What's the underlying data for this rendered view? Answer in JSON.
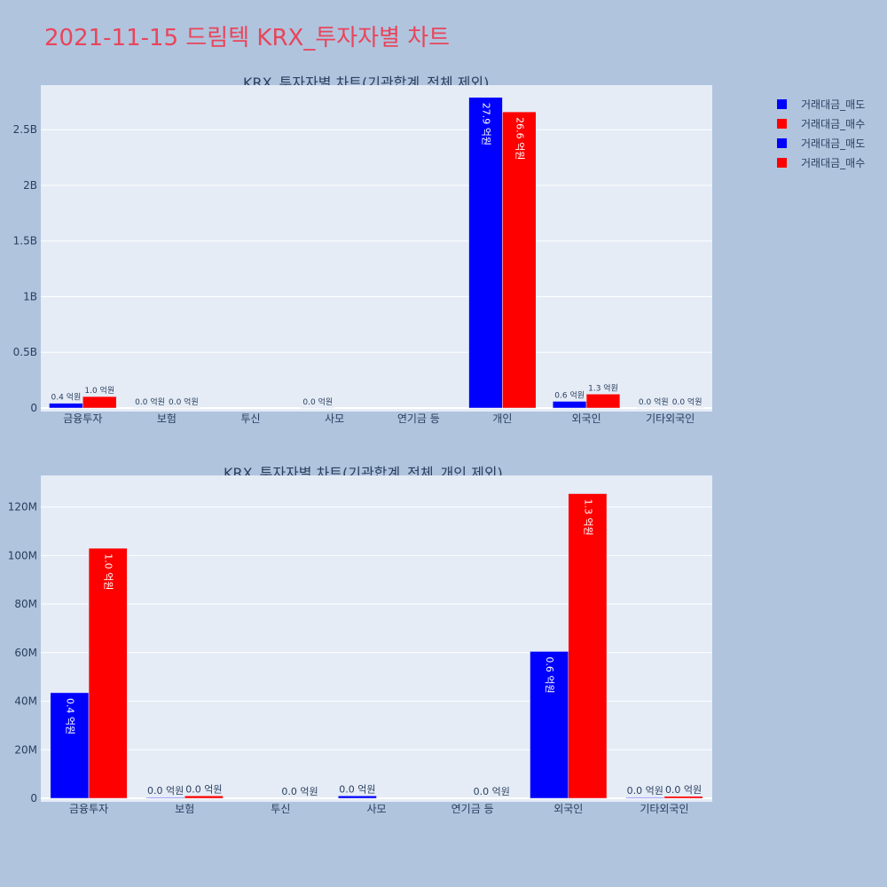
{
  "title": "2021-11-15 드림텍 KRX_투자자별 차트",
  "legend": [
    {
      "label": "거래대금_매도",
      "color": "#0000ff"
    },
    {
      "label": "거래대금_매수",
      "color": "#ff0000"
    },
    {
      "label": "거래대금_매도",
      "color": "#0000ff"
    },
    {
      "label": "거래대금_매수",
      "color": "#ff0000"
    }
  ],
  "chart_data": [
    {
      "type": "bar",
      "title": "KRX_투자자별 차트(기관합계_전체 제외)",
      "categories": [
        "금융투자",
        "보험",
        "투신",
        "사모",
        "연기금 등",
        "개인",
        "외국인",
        "기타외국인"
      ],
      "ylim": [
        0,
        2900000000
      ],
      "yticks": [
        0,
        500000000,
        1000000000,
        1500000000,
        2000000000,
        2500000000
      ],
      "ytick_labels": [
        "0",
        "0.5B",
        "1B",
        "1.5B",
        "2B",
        "2.5B"
      ],
      "text_position": [
        [
          "outside",
          "outside"
        ],
        [
          "outside",
          "outside"
        ],
        [
          "outside",
          "outside"
        ],
        [
          "outside",
          "outside"
        ],
        [
          "outside",
          "outside"
        ],
        [
          "inside",
          "inside"
        ],
        [
          "outside",
          "outside"
        ],
        [
          "outside",
          "outside"
        ]
      ],
      "series": [
        {
          "name": "거래대금_매도",
          "color": "#0000ff",
          "values": [
            43000000,
            300000,
            0,
            1000000,
            0,
            2790000000,
            60000000,
            300000
          ],
          "labels": [
            "0.4 억원",
            "0.0 억원",
            "",
            "0.0 억원",
            "",
            "27.9 억원",
            "0.6 억원",
            "0.0 억원"
          ]
        },
        {
          "name": "거래대금_매수",
          "color": "#ff0000",
          "values": [
            103000000,
            1000000,
            0,
            0,
            0,
            2660000000,
            125000000,
            800000
          ],
          "labels": [
            "1.0 억원",
            "0.0 억원",
            "",
            "",
            "",
            "26.6 억원",
            "1.3 억원",
            "0.0 억원"
          ]
        }
      ]
    },
    {
      "type": "bar",
      "title": "KRX_투자자별 차트(기관합계_전체_개인 제외)",
      "categories": [
        "금융투자",
        "보험",
        "투신",
        "사모",
        "연기금 등",
        "외국인",
        "기타외국인"
      ],
      "ylim": [
        0,
        133000000
      ],
      "yticks": [
        0,
        20000000,
        40000000,
        60000000,
        80000000,
        100000000,
        120000000
      ],
      "ytick_labels": [
        "0",
        "20M",
        "40M",
        "60M",
        "80M",
        "100M",
        "120M"
      ],
      "text_position": [
        [
          "inside",
          "inside"
        ],
        [
          "outside",
          "outside"
        ],
        [
          "outside",
          "outside"
        ],
        [
          "outside",
          "outside"
        ],
        [
          "outside",
          "outside"
        ],
        [
          "inside",
          "inside"
        ],
        [
          "outside",
          "outside"
        ]
      ],
      "series": [
        {
          "name": "거래대금_매도",
          "color": "#0000ff",
          "values": [
            43500000,
            300000,
            0,
            1000000,
            0,
            60500000,
            300000
          ],
          "labels": [
            "0.4 억원",
            "0.0 억원",
            "",
            "0.0 억원",
            "",
            "0.6 억원",
            "0.0 억원"
          ]
        },
        {
          "name": "거래대금_매수",
          "color": "#ff0000",
          "values": [
            103000000,
            1000000,
            0,
            0,
            0,
            125500000,
            800000
          ],
          "labels": [
            "1.0 억원",
            "0.0 억원",
            "0.0 억원",
            "",
            "0.0 억원",
            "1.3 억원",
            "0.0 억원"
          ]
        }
      ]
    }
  ]
}
